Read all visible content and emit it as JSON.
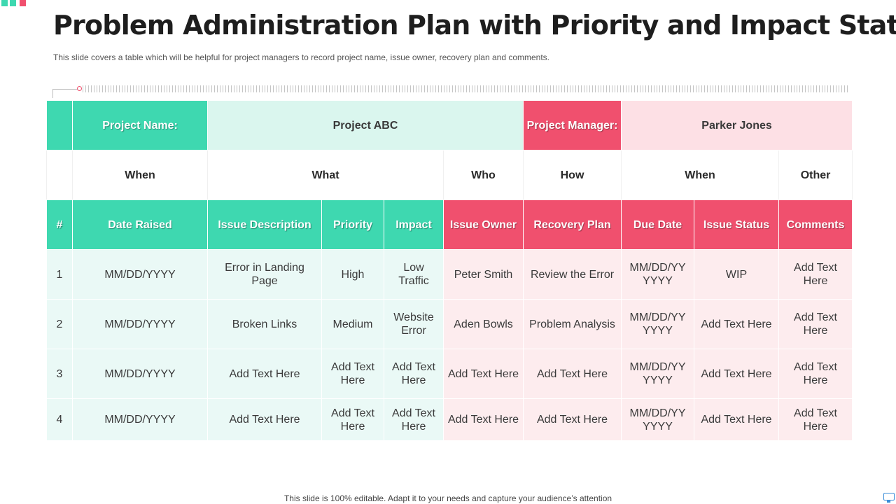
{
  "title": "Problem Administration Plan with Priority and Impact Status",
  "subtitle": "This slide covers a table which will be helpful for project managers to record project name, issue owner, recovery plan and comments.",
  "footer": "This slide is 100% editable. Adapt it to your needs and capture your audience’s attention",
  "colors": {
    "green": "#3ed8b0",
    "green_light": "#daf6ee",
    "red": "#f0506e",
    "pink": "#fde0e5"
  },
  "icons": [
    "monitor-icon"
  ],
  "project": {
    "name_label": "Project Name:",
    "name_value": "Project ABC",
    "manager_label": "Project Manager:",
    "manager_value": "Parker Jones"
  },
  "groups": [
    "When",
    "What",
    "Who",
    "How",
    "When",
    "Other"
  ],
  "columns": [
    "#",
    "Date Raised",
    "Issue Description",
    "Priority",
    "Impact",
    "Issue Owner",
    "Recovery Plan",
    "Due Date",
    "Issue Status",
    "Comments"
  ],
  "rows": [
    [
      "1",
      "MM/DD/YYYY",
      "Error in Landing Page",
      "High",
      "Low Traffic",
      "Peter Smith",
      "Review the Error",
      "MM/DD/YY YYYY",
      "WIP",
      "Add Text Here"
    ],
    [
      "2",
      "MM/DD/YYYY",
      "Broken Links",
      "Medium",
      "Website Error",
      "Aden Bowls",
      "Problem Analysis",
      "MM/DD/YY YYYY",
      "Add Text Here",
      "Add Text Here"
    ],
    [
      "3",
      "MM/DD/YYYY",
      "Add Text Here",
      "Add Text Here",
      "Add Text Here",
      "Add Text Here",
      "Add Text Here",
      "MM/DD/YY YYYY",
      "Add Text Here",
      "Add Text Here"
    ],
    [
      "4",
      "MM/DD/YYYY",
      "Add Text Here",
      "Add Text Here",
      "Add Text Here",
      "Add Text Here",
      "Add Text Here",
      "MM/DD/YY YYYY",
      "Add Text Here",
      "Add Text Here"
    ]
  ]
}
